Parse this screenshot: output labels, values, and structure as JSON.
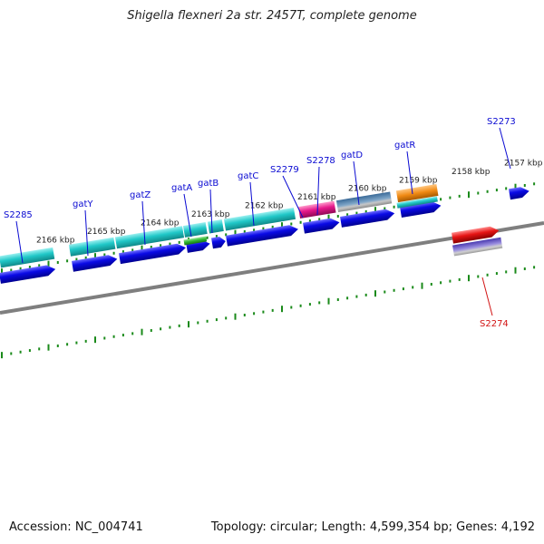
{
  "title": "Shigella flexneri 2a str. 2457T, complete genome",
  "footer": {
    "accession": "Accession: NC_004741",
    "summary": "Topology: circular; Length: 4,599,354 bp; Genes: 4,192"
  },
  "ruler": {
    "labels": [
      "2166 kbp",
      "2165 kbp",
      "2164 kbp",
      "2163 kbp",
      "2162 kbp",
      "2161 kbp",
      "2160 kbp",
      "2159 kbp",
      "2158 kbp",
      "2157 kbp"
    ]
  },
  "genes": {
    "forward": [
      "S2285",
      "gatY",
      "gatZ",
      "gatA",
      "gatB",
      "gatC",
      "S2279",
      "S2278",
      "gatD",
      "gatR",
      "S2273"
    ],
    "reverse": [
      "S2274"
    ]
  },
  "colors": {
    "backbone": "#7f7f7f",
    "tick": "#1a8a1a",
    "cds": "#0a0ae6",
    "label_forward": "#0a0ad2",
    "label_reverse": "#d21414",
    "cyan_feature": "#20c8c8",
    "magenta_feature": "#e6198c",
    "steel_feature": "#4a7aa8",
    "orange_feature": "#f08a14",
    "green_feature": "#2fb52f",
    "red_feature": "#e61414",
    "purple_feature": "#6a5ac8"
  }
}
